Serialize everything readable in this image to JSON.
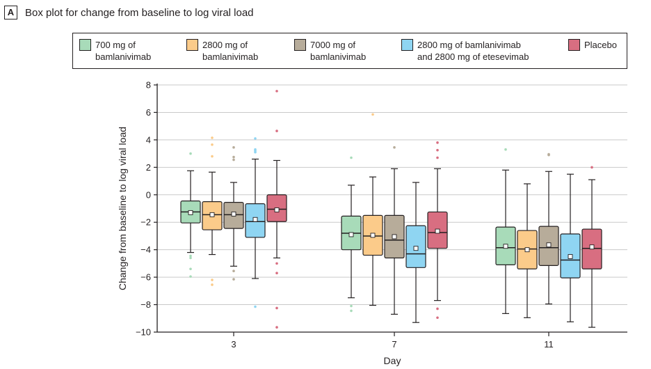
{
  "panel": {
    "label": "A",
    "title": "Box plot for change from baseline to log viral load"
  },
  "legend": [
    {
      "line1": "700 mg of",
      "line2": "bamlanivimab",
      "color": "#a8dbb9"
    },
    {
      "line1": "2800 mg of",
      "line2": "bamlanivimab",
      "color": "#fbcb8a"
    },
    {
      "line1": "7000 mg of",
      "line2": "bamlanivimab",
      "color": "#b7ac9a"
    },
    {
      "line1": "2800 mg of bamlanivimab",
      "line2": "and 2800 mg of etesevimab",
      "color": "#8fd5f2"
    },
    {
      "line1": "Placebo",
      "line2": "",
      "color": "#d86e81"
    }
  ],
  "chart_data": {
    "type": "boxplot",
    "xlabel": "Day",
    "ylabel": "Change from baseline to log viral load",
    "ylim": [
      -10,
      8
    ],
    "yticks": [
      8,
      6,
      4,
      2,
      0,
      -2,
      -4,
      -6,
      -8,
      -10
    ],
    "categories": [
      "3",
      "7",
      "11"
    ],
    "grid": "horizontal",
    "series": [
      {
        "name": "700 mg of bamlanivimab",
        "color": "#a8dbb9",
        "boxes": [
          {
            "q1": -2.05,
            "median": -1.25,
            "q3": -0.45,
            "mean": -1.3,
            "whisker_low": -4.2,
            "whisker_high": 1.75,
            "outliers": [
              3.0,
              -4.45,
              -4.6,
              -5.4,
              -5.95
            ]
          },
          {
            "q1": -4.0,
            "median": -2.8,
            "q3": -1.55,
            "mean": -2.9,
            "whisker_low": -7.5,
            "whisker_high": 0.7,
            "outliers": [
              2.7,
              -8.1,
              -8.45
            ]
          },
          {
            "q1": -5.1,
            "median": -3.85,
            "q3": -2.35,
            "mean": -3.75,
            "whisker_low": -8.65,
            "whisker_high": 1.8,
            "outliers": [
              3.3
            ]
          }
        ]
      },
      {
        "name": "2800 mg of bamlanivimab",
        "color": "#fbcb8a",
        "boxes": [
          {
            "q1": -2.55,
            "median": -1.45,
            "q3": -0.5,
            "mean": -1.45,
            "whisker_low": -4.35,
            "whisker_high": 1.65,
            "outliers": [
              4.15,
              3.65,
              2.8,
              -6.2,
              -6.55
            ]
          },
          {
            "q1": -4.4,
            "median": -3.0,
            "q3": -1.5,
            "mean": -2.95,
            "whisker_low": -8.05,
            "whisker_high": 1.3,
            "outliers": [
              5.85
            ]
          },
          {
            "q1": -5.4,
            "median": -3.95,
            "q3": -2.6,
            "mean": -4.0,
            "whisker_low": -8.95,
            "whisker_high": 0.8,
            "outliers": []
          }
        ]
      },
      {
        "name": "7000 mg of bamlanivimab",
        "color": "#b7ac9a",
        "boxes": [
          {
            "q1": -2.45,
            "median": -1.45,
            "q3": -0.55,
            "mean": -1.4,
            "whisker_low": -5.2,
            "whisker_high": 0.9,
            "outliers": [
              3.45,
              2.75,
              2.55,
              -5.55,
              -6.15
            ]
          },
          {
            "q1": -4.6,
            "median": -3.3,
            "q3": -1.5,
            "mean": -3.05,
            "whisker_low": -8.7,
            "whisker_high": 1.9,
            "outliers": [
              3.45
            ]
          },
          {
            "q1": -5.15,
            "median": -3.85,
            "q3": -2.3,
            "mean": -3.65,
            "whisker_low": -7.95,
            "whisker_high": 1.7,
            "outliers": [
              2.95,
              2.9
            ]
          }
        ]
      },
      {
        "name": "2800 mg of bamlanivimab and 2800 mg of etesevimab",
        "color": "#8fd5f2",
        "boxes": [
          {
            "q1": -3.1,
            "median": -1.95,
            "q3": -0.65,
            "mean": -1.8,
            "whisker_low": -6.1,
            "whisker_high": 2.6,
            "outliers": [
              4.1,
              3.3,
              3.2,
              3.1,
              -8.15
            ]
          },
          {
            "q1": -5.3,
            "median": -4.3,
            "q3": -2.25,
            "mean": -3.9,
            "whisker_low": -9.3,
            "whisker_high": 0.9,
            "outliers": []
          },
          {
            "q1": -6.05,
            "median": -4.75,
            "q3": -2.85,
            "mean": -4.5,
            "whisker_low": -9.25,
            "whisker_high": 1.5,
            "outliers": []
          }
        ]
      },
      {
        "name": "Placebo",
        "color": "#d86e81",
        "boxes": [
          {
            "q1": -1.95,
            "median": -1.05,
            "q3": 0.0,
            "mean": -1.1,
            "whisker_low": -4.6,
            "whisker_high": 2.5,
            "outliers": [
              7.55,
              4.65,
              -5.0,
              -5.7,
              -8.25,
              -9.65
            ]
          },
          {
            "q1": -3.9,
            "median": -2.75,
            "q3": -1.25,
            "mean": -2.65,
            "whisker_low": -7.7,
            "whisker_high": 1.9,
            "outliers": [
              3.8,
              3.25,
              2.7,
              -8.3,
              -8.95
            ]
          },
          {
            "q1": -5.4,
            "median": -3.9,
            "q3": -2.5,
            "mean": -3.8,
            "whisker_low": -9.65,
            "whisker_high": 1.1,
            "outliers": [
              2.0
            ]
          }
        ]
      }
    ]
  }
}
